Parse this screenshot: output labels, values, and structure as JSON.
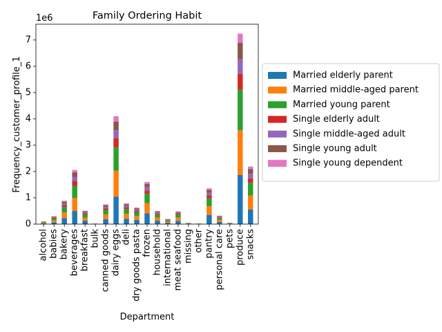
{
  "chart_data": {
    "type": "bar",
    "stacked": true,
    "title": "Family Ordering Habit",
    "xlabel": "Department",
    "ylabel": "Frequency_customer_profile_1",
    "y_scale_label": "1e6",
    "ylim": [
      0,
      7600000
    ],
    "yticks": [
      0,
      1000000,
      2000000,
      3000000,
      4000000,
      5000000,
      6000000,
      7000000
    ],
    "ytick_labels": [
      "0",
      "1",
      "2",
      "3",
      "4",
      "5",
      "6",
      "7"
    ],
    "legend_position": "center-right outside",
    "categories": [
      "alcohol",
      "babies",
      "bakery",
      "beverages",
      "breakfast",
      "bulk",
      "canned goods",
      "dairy eggs",
      "deli",
      "dry goods pasta",
      "frozen",
      "household",
      "international",
      "meat seafood",
      "missing",
      "other",
      "pantry",
      "personal care",
      "pets",
      "produce",
      "snacks"
    ],
    "series": [
      {
        "name": "Married elderly parent",
        "color": "#1f77b4",
        "values": [
          25000,
          70000,
          230000,
          500000,
          130000,
          5000,
          190000,
          1040000,
          200000,
          160000,
          410000,
          130000,
          50000,
          125000,
          12000,
          6000,
          350000,
          80000,
          12000,
          1870000,
          560000
        ]
      },
      {
        "name": "Married middle-aged parent",
        "color": "#ff7f0e",
        "values": [
          27000,
          70000,
          210000,
          500000,
          120000,
          5000,
          180000,
          990000,
          190000,
          150000,
          390000,
          120000,
          45000,
          120000,
          12000,
          6000,
          330000,
          80000,
          12000,
          1700000,
          530000
        ]
      },
      {
        "name": "Married young parent",
        "color": "#2ca02c",
        "values": [
          25000,
          70000,
          210000,
          460000,
          120000,
          5000,
          170000,
          890000,
          180000,
          140000,
          360000,
          110000,
          45000,
          115000,
          10000,
          5000,
          300000,
          70000,
          12000,
          1540000,
          480000
        ]
      },
      {
        "name": "Single elderly adult",
        "color": "#d62728",
        "values": [
          8000,
          25000,
          70000,
          170000,
          40000,
          2000,
          60000,
          350000,
          60000,
          50000,
          120000,
          40000,
          15000,
          35000,
          4000,
          2000,
          110000,
          25000,
          4000,
          600000,
          170000
        ]
      },
      {
        "name": "Single middle-aged adult",
        "color": "#9467bd",
        "values": [
          8000,
          25000,
          60000,
          160000,
          40000,
          2000,
          60000,
          300000,
          60000,
          50000,
          120000,
          40000,
          15000,
          35000,
          4000,
          2000,
          100000,
          25000,
          4000,
          560000,
          170000
        ]
      },
      {
        "name": "Single young adult",
        "color": "#8c564b",
        "values": [
          8000,
          25000,
          70000,
          180000,
          40000,
          2000,
          60000,
          330000,
          60000,
          50000,
          130000,
          40000,
          15000,
          35000,
          4000,
          2000,
          110000,
          25000,
          4000,
          620000,
          180000
        ]
      },
      {
        "name": "Single young dependent",
        "color": "#e377c2",
        "values": [
          4000,
          15000,
          40000,
          90000,
          20000,
          1000,
          30000,
          200000,
          40000,
          30000,
          70000,
          20000,
          8000,
          20000,
          2000,
          1000,
          60000,
          15000,
          2000,
          350000,
          100000
        ]
      }
    ]
  }
}
